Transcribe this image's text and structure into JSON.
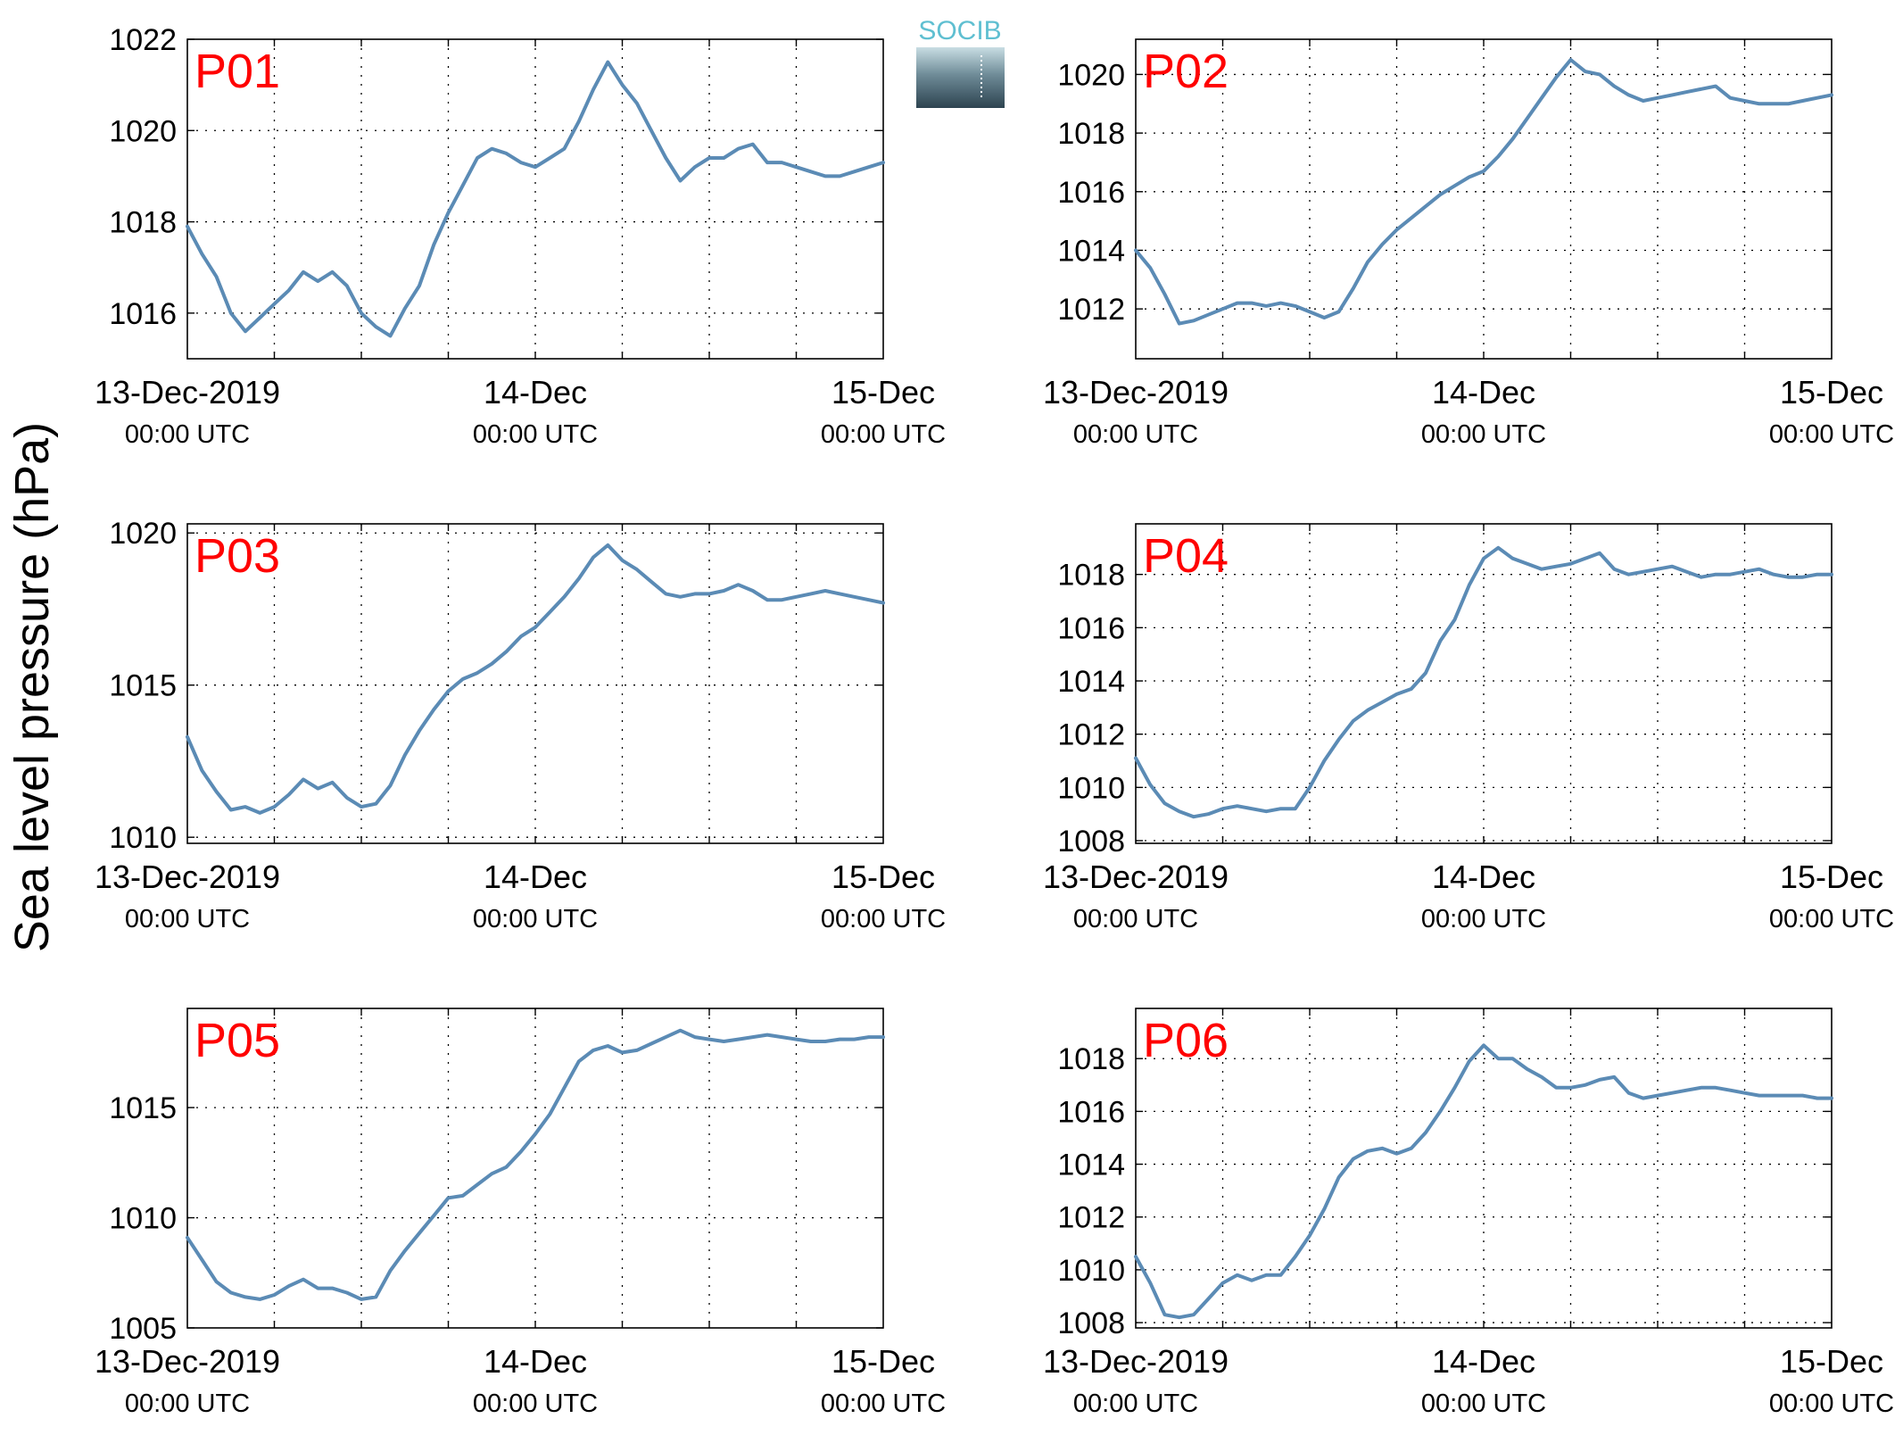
{
  "figure": {
    "ylabel": "Sea level pressure (hPa)",
    "logo_text": "SOCIB",
    "colors": {
      "line": "#5b8bb5",
      "panel_label": "#ff0000",
      "logo_top": "#5fbfd1",
      "logo_bottom": "#2d4350",
      "grid": "#000000"
    }
  },
  "chart_data": [
    {
      "type": "line",
      "panel": "P01",
      "xlabels": [
        [
          "13-Dec-2019",
          "00:00 UTC"
        ],
        [
          "14-Dec",
          "00:00 UTC"
        ],
        [
          "15-Dec",
          "00:00 UTC"
        ]
      ],
      "xlim": [
        0,
        48
      ],
      "ylim": [
        1015,
        1022
      ],
      "yticks": [
        1016,
        1018,
        1020,
        1022
      ],
      "grid": true,
      "x": [
        0,
        1,
        2,
        3,
        4,
        5,
        6,
        7,
        8,
        9,
        10,
        11,
        12,
        13,
        14,
        15,
        16,
        17,
        18,
        19,
        20,
        21,
        22,
        23,
        24,
        25,
        26,
        27,
        28,
        29,
        30,
        31,
        32,
        33,
        34,
        35,
        36,
        37,
        38,
        39,
        40,
        41,
        42,
        43,
        44,
        45,
        46,
        47,
        48
      ],
      "y": [
        1017.9,
        1017.3,
        1016.8,
        1016.0,
        1015.6,
        1015.9,
        1016.2,
        1016.5,
        1016.9,
        1016.7,
        1016.9,
        1016.6,
        1016.0,
        1015.7,
        1015.5,
        1016.1,
        1016.6,
        1017.5,
        1018.2,
        1018.8,
        1019.4,
        1019.6,
        1019.5,
        1019.3,
        1019.2,
        1019.4,
        1019.6,
        1020.2,
        1020.9,
        1021.5,
        1021.0,
        1020.6,
        1020.0,
        1019.4,
        1018.9,
        1019.2,
        1019.4,
        1019.4,
        1019.6,
        1019.7,
        1019.3,
        1019.3,
        1019.2,
        1019.1,
        1019.0,
        1019.0,
        1019.1,
        1019.2,
        1019.3
      ]
    },
    {
      "type": "line",
      "panel": "P02",
      "xlabels": [
        [
          "13-Dec-2019",
          "00:00 UTC"
        ],
        [
          "14-Dec",
          "00:00 UTC"
        ],
        [
          "15-Dec",
          "00:00 UTC"
        ]
      ],
      "xlim": [
        0,
        48
      ],
      "ylim": [
        1010.3,
        1021.2
      ],
      "yticks": [
        1012,
        1014,
        1016,
        1018,
        1020
      ],
      "grid": true,
      "x": [
        0,
        1,
        2,
        3,
        4,
        5,
        6,
        7,
        8,
        9,
        10,
        11,
        12,
        13,
        14,
        15,
        16,
        17,
        18,
        19,
        20,
        21,
        22,
        23,
        24,
        25,
        26,
        27,
        28,
        29,
        30,
        31,
        32,
        33,
        34,
        35,
        36,
        37,
        38,
        39,
        40,
        41,
        42,
        43,
        44,
        45,
        46,
        47,
        48
      ],
      "y": [
        1014.0,
        1013.4,
        1012.5,
        1011.5,
        1011.6,
        1011.8,
        1012.0,
        1012.2,
        1012.2,
        1012.1,
        1012.2,
        1012.1,
        1011.9,
        1011.7,
        1011.9,
        1012.7,
        1013.6,
        1014.2,
        1014.7,
        1015.1,
        1015.5,
        1015.9,
        1016.2,
        1016.5,
        1016.7,
        1017.2,
        1017.8,
        1018.5,
        1019.2,
        1019.9,
        1020.5,
        1020.1,
        1020.0,
        1019.6,
        1019.3,
        1019.1,
        1019.2,
        1019.3,
        1019.4,
        1019.5,
        1019.6,
        1019.2,
        1019.1,
        1019.0,
        1019.0,
        1019.0,
        1019.1,
        1019.2,
        1019.3
      ]
    },
    {
      "type": "line",
      "panel": "P03",
      "xlabels": [
        [
          "13-Dec-2019",
          "00:00 UTC"
        ],
        [
          "14-Dec",
          "00:00 UTC"
        ],
        [
          "15-Dec",
          "00:00 UTC"
        ]
      ],
      "xlim": [
        0,
        48
      ],
      "ylim": [
        1009.8,
        1020.3
      ],
      "yticks": [
        1010,
        1015,
        1020
      ],
      "grid": true,
      "x": [
        0,
        1,
        2,
        3,
        4,
        5,
        6,
        7,
        8,
        9,
        10,
        11,
        12,
        13,
        14,
        15,
        16,
        17,
        18,
        19,
        20,
        21,
        22,
        23,
        24,
        25,
        26,
        27,
        28,
        29,
        30,
        31,
        32,
        33,
        34,
        35,
        36,
        37,
        38,
        39,
        40,
        41,
        42,
        43,
        44,
        45,
        46,
        47,
        48
      ],
      "y": [
        1013.3,
        1012.2,
        1011.5,
        1010.9,
        1011.0,
        1010.8,
        1011.0,
        1011.4,
        1011.9,
        1011.6,
        1011.8,
        1011.3,
        1011.0,
        1011.1,
        1011.7,
        1012.7,
        1013.5,
        1014.2,
        1014.8,
        1015.2,
        1015.4,
        1015.7,
        1016.1,
        1016.6,
        1016.9,
        1017.4,
        1017.9,
        1018.5,
        1019.2,
        1019.6,
        1019.1,
        1018.8,
        1018.4,
        1018.0,
        1017.9,
        1018.0,
        1018.0,
        1018.1,
        1018.3,
        1018.1,
        1017.8,
        1017.8,
        1017.9,
        1018.0,
        1018.1,
        1018.0,
        1017.9,
        1017.8,
        1017.7
      ]
    },
    {
      "type": "line",
      "panel": "P04",
      "xlabels": [
        [
          "13-Dec-2019",
          "00:00 UTC"
        ],
        [
          "14-Dec",
          "00:00 UTC"
        ],
        [
          "15-Dec",
          "00:00 UTC"
        ]
      ],
      "xlim": [
        0,
        48
      ],
      "ylim": [
        1007.9,
        1019.9
      ],
      "yticks": [
        1008,
        1010,
        1012,
        1014,
        1016,
        1018
      ],
      "grid": true,
      "x": [
        0,
        1,
        2,
        3,
        4,
        5,
        6,
        7,
        8,
        9,
        10,
        11,
        12,
        13,
        14,
        15,
        16,
        17,
        18,
        19,
        20,
        21,
        22,
        23,
        24,
        25,
        26,
        27,
        28,
        29,
        30,
        31,
        32,
        33,
        34,
        35,
        36,
        37,
        38,
        39,
        40,
        41,
        42,
        43,
        44,
        45,
        46,
        47,
        48
      ],
      "y": [
        1011.1,
        1010.1,
        1009.4,
        1009.1,
        1008.9,
        1009.0,
        1009.2,
        1009.3,
        1009.2,
        1009.1,
        1009.2,
        1009.2,
        1010.0,
        1011.0,
        1011.8,
        1012.5,
        1012.9,
        1013.2,
        1013.5,
        1013.7,
        1014.3,
        1015.5,
        1016.3,
        1017.6,
        1018.6,
        1019.0,
        1018.6,
        1018.4,
        1018.2,
        1018.3,
        1018.4,
        1018.6,
        1018.8,
        1018.2,
        1018.0,
        1018.1,
        1018.2,
        1018.3,
        1018.1,
        1017.9,
        1018.0,
        1018.0,
        1018.1,
        1018.2,
        1018.0,
        1017.9,
        1017.9,
        1018.0,
        1018.0
      ]
    },
    {
      "type": "line",
      "panel": "P05",
      "xlabels": [
        [
          "13-Dec-2019",
          "00:00 UTC"
        ],
        [
          "14-Dec",
          "00:00 UTC"
        ],
        [
          "15-Dec",
          "00:00 UTC"
        ]
      ],
      "xlim": [
        0,
        48
      ],
      "ylim": [
        1005,
        1019.5
      ],
      "yticks": [
        1005,
        1010,
        1015
      ],
      "grid": true,
      "x": [
        0,
        1,
        2,
        3,
        4,
        5,
        6,
        7,
        8,
        9,
        10,
        11,
        12,
        13,
        14,
        15,
        16,
        17,
        18,
        19,
        20,
        21,
        22,
        23,
        24,
        25,
        26,
        27,
        28,
        29,
        30,
        31,
        32,
        33,
        34,
        35,
        36,
        37,
        38,
        39,
        40,
        41,
        42,
        43,
        44,
        45,
        46,
        47,
        48
      ],
      "y": [
        1009.1,
        1008.1,
        1007.1,
        1006.6,
        1006.4,
        1006.3,
        1006.5,
        1006.9,
        1007.2,
        1006.8,
        1006.8,
        1006.6,
        1006.3,
        1006.4,
        1007.6,
        1008.5,
        1009.3,
        1010.1,
        1010.9,
        1011.0,
        1011.5,
        1012.0,
        1012.3,
        1013.0,
        1013.8,
        1014.7,
        1015.9,
        1017.1,
        1017.6,
        1017.8,
        1017.5,
        1017.6,
        1017.9,
        1018.2,
        1018.5,
        1018.2,
        1018.1,
        1018.0,
        1018.1,
        1018.2,
        1018.3,
        1018.2,
        1018.1,
        1018.0,
        1018.0,
        1018.1,
        1018.1,
        1018.2,
        1018.2
      ]
    },
    {
      "type": "line",
      "panel": "P06",
      "xlabels": [
        [
          "13-Dec-2019",
          "00:00 UTC"
        ],
        [
          "14-Dec",
          "00:00 UTC"
        ],
        [
          "15-Dec",
          "00:00 UTC"
        ]
      ],
      "xlim": [
        0,
        48
      ],
      "ylim": [
        1007.8,
        1019.9
      ],
      "yticks": [
        1008,
        1010,
        1012,
        1014,
        1016,
        1018
      ],
      "grid": true,
      "x": [
        0,
        1,
        2,
        3,
        4,
        5,
        6,
        7,
        8,
        9,
        10,
        11,
        12,
        13,
        14,
        15,
        16,
        17,
        18,
        19,
        20,
        21,
        22,
        23,
        24,
        25,
        26,
        27,
        28,
        29,
        30,
        31,
        32,
        33,
        34,
        35,
        36,
        37,
        38,
        39,
        40,
        41,
        42,
        43,
        44,
        45,
        46,
        47,
        48
      ],
      "y": [
        1010.5,
        1009.5,
        1008.3,
        1008.2,
        1008.3,
        1008.9,
        1009.5,
        1009.8,
        1009.6,
        1009.8,
        1009.8,
        1010.5,
        1011.3,
        1012.3,
        1013.5,
        1014.2,
        1014.5,
        1014.6,
        1014.4,
        1014.6,
        1015.2,
        1016.0,
        1016.9,
        1017.9,
        1018.5,
        1018.0,
        1018.0,
        1017.6,
        1017.3,
        1016.9,
        1016.9,
        1017.0,
        1017.2,
        1017.3,
        1016.7,
        1016.5,
        1016.6,
        1016.7,
        1016.8,
        1016.9,
        1016.9,
        1016.8,
        1016.7,
        1016.6,
        1016.6,
        1016.6,
        1016.6,
        1016.5,
        1016.5
      ]
    }
  ]
}
